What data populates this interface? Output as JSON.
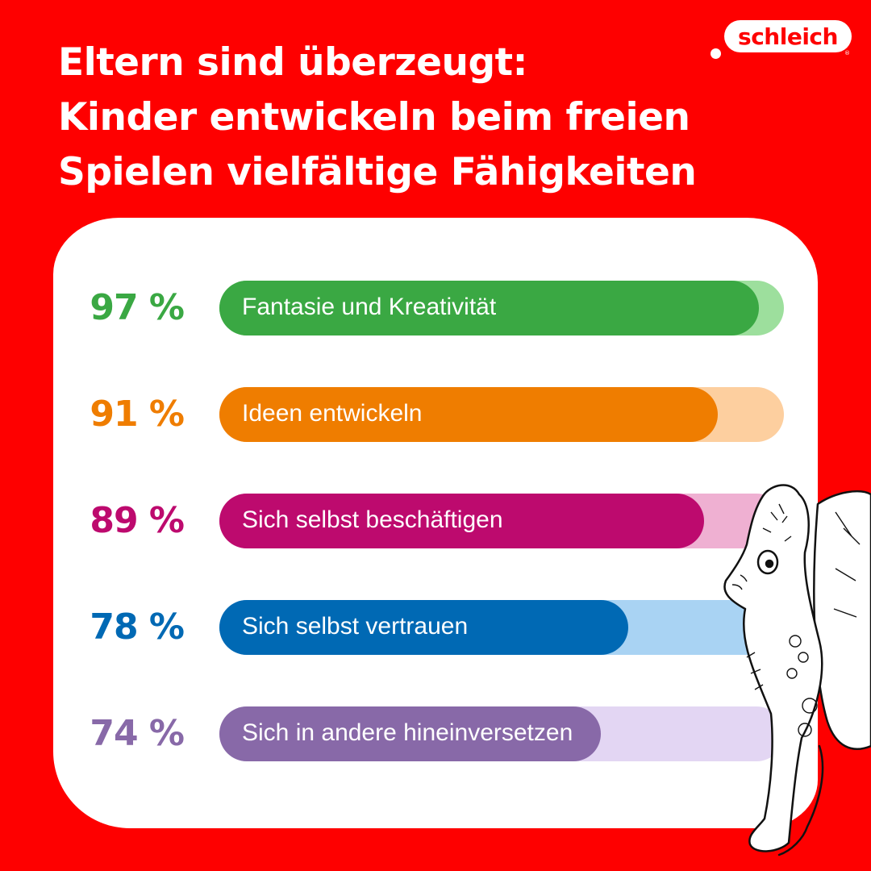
{
  "header": {
    "title_lines": [
      "Eltern sind überzeugt:",
      "Kinder entwickeln beim freien",
      "Spielen vielfältige Fähigkeiten"
    ],
    "logo": "schleich",
    "logo_mark": "®"
  },
  "colors": {
    "background": "#fe0000",
    "card": "#ffffff",
    "text_on_red": "#ffffff"
  },
  "bars": [
    {
      "pct_label": "97 %",
      "value": 97,
      "label": "Fantasie und Kreativität",
      "color": "#3aa843",
      "track_color": "#9ddf9d"
    },
    {
      "pct_label": "91 %",
      "value": 91,
      "label": "Ideen entwickeln",
      "color": "#ef7d00",
      "track_color": "#fdcf9f"
    },
    {
      "pct_label": "89 %",
      "value": 89,
      "label": "Sich selbst beschäftigen",
      "color": "#bd0a6e",
      "track_color": "#efb0d2"
    },
    {
      "pct_label": "78 %",
      "value": 78,
      "label": "Sich selbst vertrauen",
      "color": "#0069b4",
      "track_color": "#a9d3f3"
    },
    {
      "pct_label": "74 %",
      "value": 74,
      "label": "Sich in andere hineinversetzen",
      "color": "#8869a8",
      "track_color": "#e3d6f3"
    }
  ],
  "chart_data": {
    "type": "bar",
    "orientation": "horizontal",
    "title": "Eltern sind überzeugt: Kinder entwickeln beim freien Spielen vielfältige Fähigkeiten",
    "categories": [
      "Fantasie und Kreativität",
      "Ideen entwickeln",
      "Sich selbst beschäftigen",
      "Sich selbst vertrauen",
      "Sich in andere hineinversetzen"
    ],
    "values": [
      97,
      91,
      89,
      78,
      74
    ],
    "unit": "%",
    "xlim": [
      0,
      100
    ],
    "xlabel": "",
    "ylabel": "",
    "grid": false,
    "legend": null,
    "data_labels": [
      "97 %",
      "91 %",
      "89 %",
      "78 %",
      "74 %"
    ]
  }
}
